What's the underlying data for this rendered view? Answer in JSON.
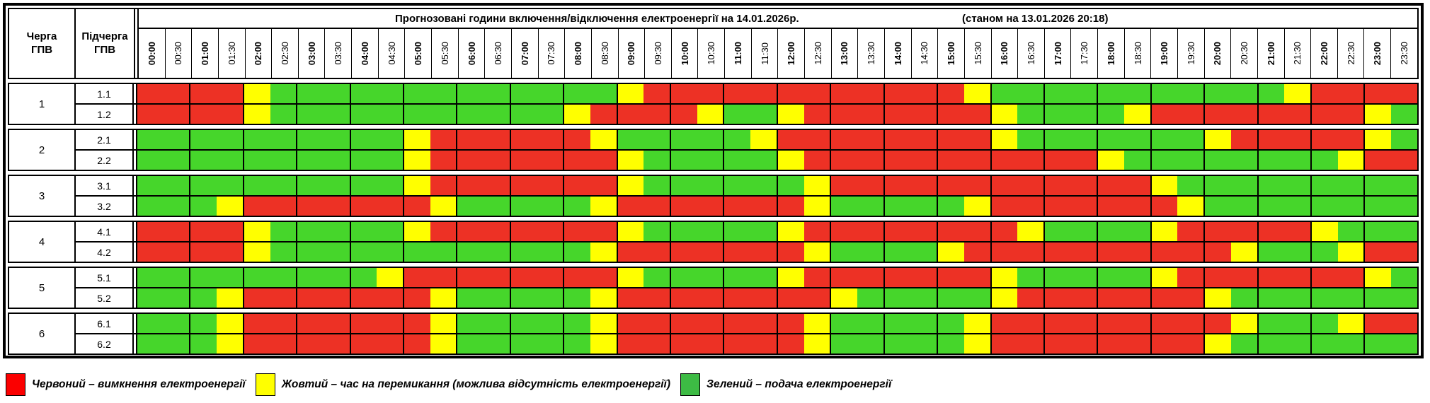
{
  "header": {
    "queue_col_line1": "Черга",
    "queue_col_line2": "ГПВ",
    "sub_col_line1": "Підчерга",
    "sub_col_line2": "ГПВ",
    "title": "Прогнозовані години включення/відключення електроенергії на 14.01.2026р.",
    "as_of": "(станом на 13.01.2026 20:18)"
  },
  "chart_data": {
    "type": "heatmap",
    "x_labels": [
      "00:00",
      "00:30",
      "01:00",
      "01:30",
      "02:00",
      "02:30",
      "03:00",
      "03:30",
      "04:00",
      "04:30",
      "05:00",
      "05:30",
      "06:00",
      "06:30",
      "07:00",
      "07:30",
      "08:00",
      "08:30",
      "09:00",
      "09:30",
      "10:00",
      "10:30",
      "11:00",
      "11:30",
      "12:00",
      "12:30",
      "13:00",
      "13:30",
      "14:00",
      "14:30",
      "15:00",
      "15:30",
      "16:00",
      "16:30",
      "17:00",
      "17:30",
      "18:00",
      "18:30",
      "19:00",
      "19:30",
      "20:00",
      "20:30",
      "21:00",
      "21:30",
      "22:00",
      "22:30",
      "23:00",
      "23:30"
    ],
    "state_colors": {
      "R": "#ed3125",
      "Y": "#ffff00",
      "G": "#46d62b"
    },
    "state_meaning": {
      "R": "вимкнення",
      "Y": "перемикання",
      "G": "подача"
    },
    "groups": [
      {
        "queue": "1",
        "rows": [
          {
            "label": "1.1",
            "slots": "RRRRYGGGGGGGGGGGGGYRRRRRRRRRRRRYGGGGGGGGGGGYRRRR"
          },
          {
            "label": "1.2",
            "slots": "RRRRYGGGGGGGGGGGYRRRRYGGYRRRRRRRYGGGGYRRRRRRRRYG"
          }
        ]
      },
      {
        "queue": "2",
        "rows": [
          {
            "label": "2.1",
            "slots": "GGGGGGGGGGYRRRRRRYGGGGGYRRRRRRRRYGGGGGGGYRRRRRYG"
          },
          {
            "label": "2.2",
            "slots": "GGGGGGGGGGYRRRRRRRYGGGGGYRRRRRRRRRRRYGGGGGGGGYRR"
          }
        ]
      },
      {
        "queue": "3",
        "rows": [
          {
            "label": "3.1",
            "slots": "GGGGGGGGGGYRRRRRRRYGGGGGGYRRRRRRRRRRRRYGGGGGGGGG"
          },
          {
            "label": "3.2",
            "slots": "GGGYRRRRRRRYGGGGGYRRRRRRRYGGGGGYRRRRRRRYGGGGGGGG"
          }
        ]
      },
      {
        "queue": "4",
        "rows": [
          {
            "label": "4.1",
            "slots": "RRRRYGGGGGYRRRRRRRYGGGGGYRRRRRRRRYGGGGYRRRRRYGGG"
          },
          {
            "label": "4.2",
            "slots": "RRRRYGGGGGGGGGGGGYRRRRRRRYGGGGYRRRRRRRRRRYGGGYRR"
          }
        ]
      },
      {
        "queue": "5",
        "rows": [
          {
            "label": "5.1",
            "slots": "GGGGGGGGGYRRRRRRRRYGGGGGYRRRRRRRYGGGGGYRRRRRRRYG"
          },
          {
            "label": "5.2",
            "slots": "GGGYRRRRRRRYGGGGGYRRRRRRRRYGGGGGYRRRRRRRYGGGGGGG"
          }
        ]
      },
      {
        "queue": "6",
        "rows": [
          {
            "label": "6.1",
            "slots": "GGGYRRRRRRRYGGGGGYRRRRRRRYGGGGGYRRRRRRRRRYGGGYRR"
          },
          {
            "label": "6.2",
            "slots": "GGGYRRRRRRRYGGGGGYRRRRRRRYGGGGGYRRRRRRRRYGGGGGGG"
          }
        ]
      }
    ],
    "legend": [
      {
        "color": "#fb0000",
        "label": "Червоний – вимкнення електроенергії"
      },
      {
        "color": "#ffff00",
        "label": "Жовтий – час на перемикання (можлива відсутність електроенергії)"
      },
      {
        "color": "#3dbb44",
        "label": "Зелений – подача електроенергії"
      }
    ]
  }
}
